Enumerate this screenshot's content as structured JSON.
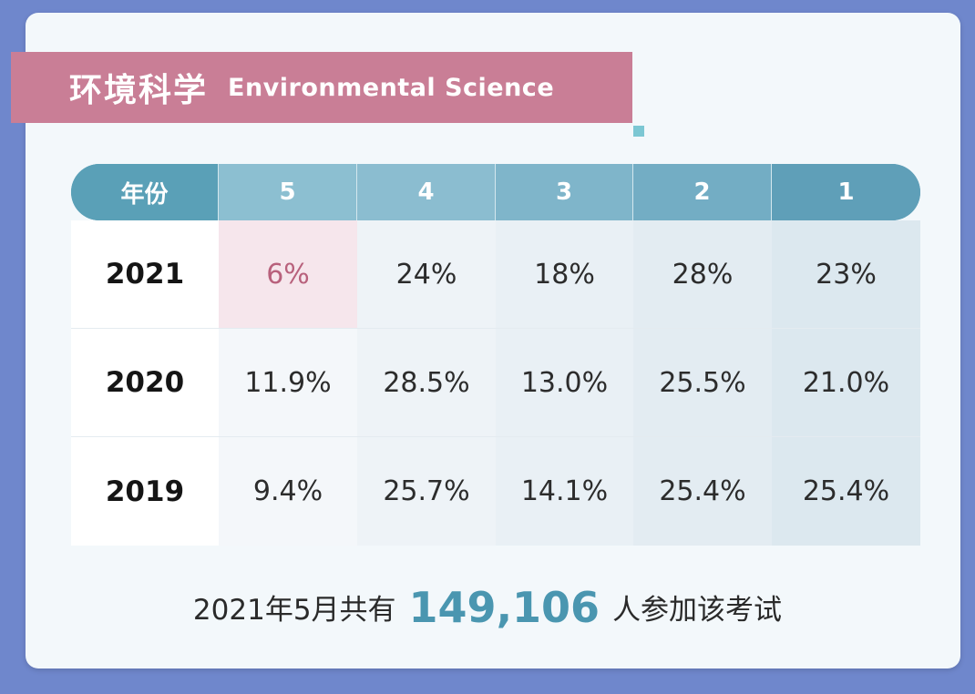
{
  "title": {
    "zh": "环境科学",
    "en": "Environmental Science"
  },
  "chart_data": {
    "type": "table",
    "columns": [
      "年份",
      "5",
      "4",
      "3",
      "2",
      "1"
    ],
    "rows": [
      {
        "year": "2021",
        "values": [
          "6%",
          "24%",
          "18%",
          "28%",
          "23%"
        ]
      },
      {
        "year": "2020",
        "values": [
          "11.9%",
          "28.5%",
          "13.0%",
          "25.5%",
          "21.0%"
        ]
      },
      {
        "year": "2019",
        "values": [
          "9.4%",
          "25.7%",
          "14.1%",
          "25.4%",
          "25.4%"
        ]
      }
    ]
  },
  "footer": {
    "prefix": "2021年5月共有",
    "count": "149,106",
    "suffix": "人参加该考试"
  },
  "colors": {
    "background": "#6f87cc",
    "banner": "#c97e96",
    "header": "#5a9fb6",
    "highlight_cell": "#f6e6ec",
    "highlight_text": "#b8617c",
    "accent": "#4a96b0"
  }
}
